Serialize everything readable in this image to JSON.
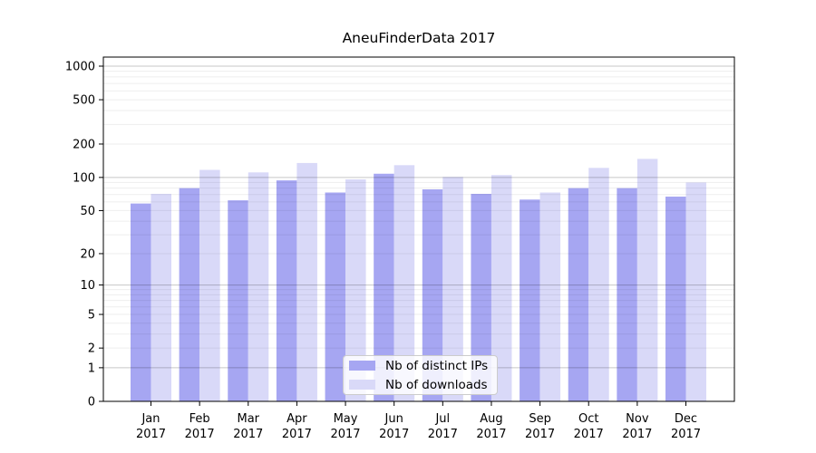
{
  "figure": {
    "title": "AneuFinderData 2017"
  },
  "chart_data": {
    "type": "bar",
    "title": "AneuFinderData 2017",
    "categories": [
      "Jan",
      "Feb",
      "Mar",
      "Apr",
      "May",
      "Jun",
      "Jul",
      "Aug",
      "Sep",
      "Oct",
      "Nov",
      "Dec"
    ],
    "x_tick_line2": "2017",
    "series": [
      {
        "name": "Nb of distinct IPs",
        "color": "#a6a6f2",
        "values": [
          58,
          80,
          62,
          94,
          73,
          108,
          78,
          71,
          63,
          80,
          80,
          67
        ]
      },
      {
        "name": "Nb of downloads",
        "color": "#d9d9f8",
        "values": [
          71,
          117,
          111,
          135,
          96,
          129,
          101,
          105,
          73,
          122,
          147,
          90
        ]
      }
    ],
    "yscale": "log1p",
    "yticks": [
      0,
      1,
      2,
      5,
      10,
      20,
      50,
      100,
      200,
      500,
      1000
    ],
    "ylim": [
      0,
      1000
    ],
    "grid": {
      "horizontal": true,
      "major_at": [
        1,
        10,
        100,
        1000
      ],
      "minor": "2-9 per decade"
    },
    "legend": {
      "position": "inside lower center"
    }
  }
}
